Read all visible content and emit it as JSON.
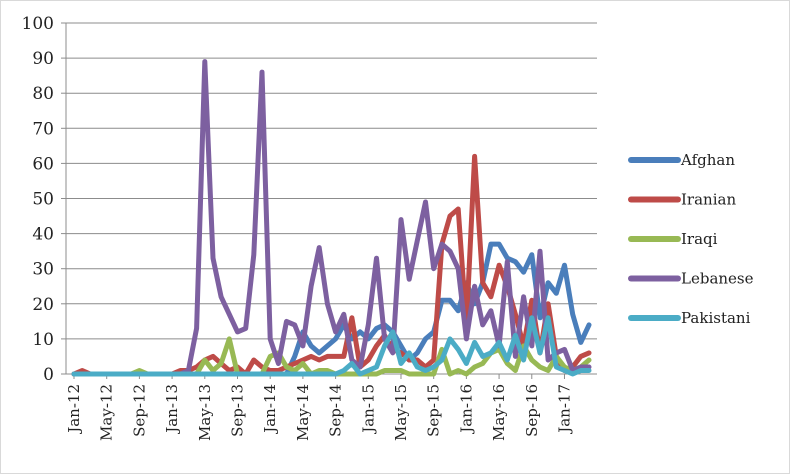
{
  "chart_data": {
    "type": "line",
    "title": "",
    "xlabel": "",
    "ylabel": "",
    "ylim": [
      0,
      100
    ],
    "yticks": [
      0,
      10,
      20,
      30,
      40,
      50,
      60,
      70,
      80,
      90,
      100
    ],
    "grid": true,
    "legend_position": "right",
    "x_tick_labels": [
      "Jan-12",
      "May-12",
      "Sep-12",
      "Jan-13",
      "May-13",
      "Sep-13",
      "Jan-14",
      "May-14",
      "Sep-14",
      "Jan-15",
      "May-15",
      "Sep-15",
      "Jan-16",
      "May-16",
      "Sep-16",
      "Jan-17"
    ],
    "x_tick_indices": [
      0,
      4,
      8,
      12,
      16,
      20,
      24,
      28,
      32,
      36,
      40,
      44,
      48,
      52,
      56,
      60
    ],
    "x": [
      "Jan-12",
      "Feb-12",
      "Mar-12",
      "Apr-12",
      "May-12",
      "Jun-12",
      "Jul-12",
      "Aug-12",
      "Sep-12",
      "Oct-12",
      "Nov-12",
      "Dec-12",
      "Jan-13",
      "Feb-13",
      "Mar-13",
      "Apr-13",
      "May-13",
      "Jun-13",
      "Jul-13",
      "Aug-13",
      "Sep-13",
      "Oct-13",
      "Nov-13",
      "Dec-13",
      "Jan-14",
      "Feb-14",
      "Mar-14",
      "Apr-14",
      "May-14",
      "Jun-14",
      "Jul-14",
      "Aug-14",
      "Sep-14",
      "Oct-14",
      "Nov-14",
      "Dec-14",
      "Jan-15",
      "Feb-15",
      "Mar-15",
      "Apr-15",
      "May-15",
      "Jun-15",
      "Jul-15",
      "Aug-15",
      "Sep-15",
      "Oct-15",
      "Nov-15",
      "Dec-15",
      "Jan-16",
      "Feb-16",
      "Mar-16",
      "Apr-16",
      "May-16",
      "Jun-16",
      "Jul-16",
      "Aug-16",
      "Sep-16",
      "Oct-16",
      "Nov-16",
      "Dec-16",
      "Jan-17",
      "Feb-17",
      "Mar-17",
      "Apr-17"
    ],
    "series": [
      {
        "name": "Afghan",
        "color": "#4a7ebb",
        "values": [
          0,
          0,
          0,
          0,
          0,
          0,
          0,
          0,
          0,
          0,
          0,
          0,
          0,
          0,
          0,
          0,
          0,
          0,
          0,
          0,
          0,
          0,
          0,
          0,
          0,
          0,
          0,
          5,
          12,
          8,
          6,
          8,
          10,
          14,
          10,
          12,
          10,
          13,
          14,
          12,
          8,
          4,
          6,
          10,
          12,
          21,
          21,
          18,
          26,
          20,
          26,
          37,
          37,
          33,
          32,
          29,
          34,
          16,
          26,
          23,
          31,
          17,
          9,
          14
        ]
      },
      {
        "name": "Iranian",
        "color": "#be4b48",
        "values": [
          0,
          1,
          0,
          0,
          0,
          0,
          0,
          0,
          0,
          0,
          0,
          0,
          0,
          1,
          1,
          2,
          4,
          5,
          3,
          1,
          2,
          0,
          4,
          2,
          1,
          1,
          2,
          3,
          4,
          5,
          4,
          5,
          5,
          5,
          16,
          2,
          4,
          8,
          11,
          7,
          6,
          4,
          4,
          2,
          4,
          37,
          45,
          47,
          14,
          62,
          26,
          22,
          31,
          25,
          17,
          8,
          21,
          6,
          20,
          5,
          1,
          2,
          5,
          6
        ]
      },
      {
        "name": "Iraqi",
        "color": "#98b954",
        "values": [
          0,
          0,
          0,
          0,
          0,
          0,
          0,
          0,
          1,
          0,
          0,
          0,
          0,
          0,
          0,
          0,
          4,
          1,
          3,
          10,
          0,
          0,
          0,
          0,
          5,
          6,
          2,
          1,
          3,
          0,
          1,
          1,
          0,
          0,
          0,
          0,
          0,
          0,
          1,
          1,
          1,
          0,
          0,
          0,
          0,
          7,
          0,
          1,
          0,
          2,
          3,
          6,
          7,
          3,
          1,
          8,
          4,
          2,
          1,
          5,
          2,
          1,
          2,
          4
        ]
      },
      {
        "name": "Lebanese",
        "color": "#7d60a0",
        "values": [
          0,
          0,
          0,
          0,
          0,
          0,
          0,
          0,
          0,
          0,
          0,
          0,
          0,
          0,
          1,
          13,
          89,
          33,
          22,
          17,
          12,
          13,
          34,
          86,
          10,
          3,
          15,
          14,
          8,
          25,
          36,
          20,
          12,
          17,
          4,
          2,
          14,
          33,
          10,
          6,
          44,
          27,
          38,
          49,
          30,
          37,
          35,
          30,
          10,
          25,
          14,
          18,
          8,
          32,
          5,
          22,
          8,
          35,
          4,
          6,
          7,
          1,
          2,
          2
        ]
      },
      {
        "name": "Pakistani",
        "color": "#4bacc6",
        "values": [
          0,
          0,
          0,
          0,
          0,
          0,
          0,
          0,
          0,
          0,
          0,
          0,
          0,
          0,
          0,
          0,
          0,
          0,
          0,
          0,
          0,
          0,
          0,
          0,
          0,
          0,
          0,
          0,
          0,
          0,
          0,
          0,
          0,
          1,
          3,
          0,
          1,
          2,
          8,
          12,
          3,
          6,
          2,
          1,
          2,
          4,
          10,
          7,
          3,
          9,
          5,
          6,
          9,
          4,
          11,
          4,
          16,
          6,
          16,
          2,
          1,
          0,
          1,
          1
        ]
      }
    ]
  }
}
